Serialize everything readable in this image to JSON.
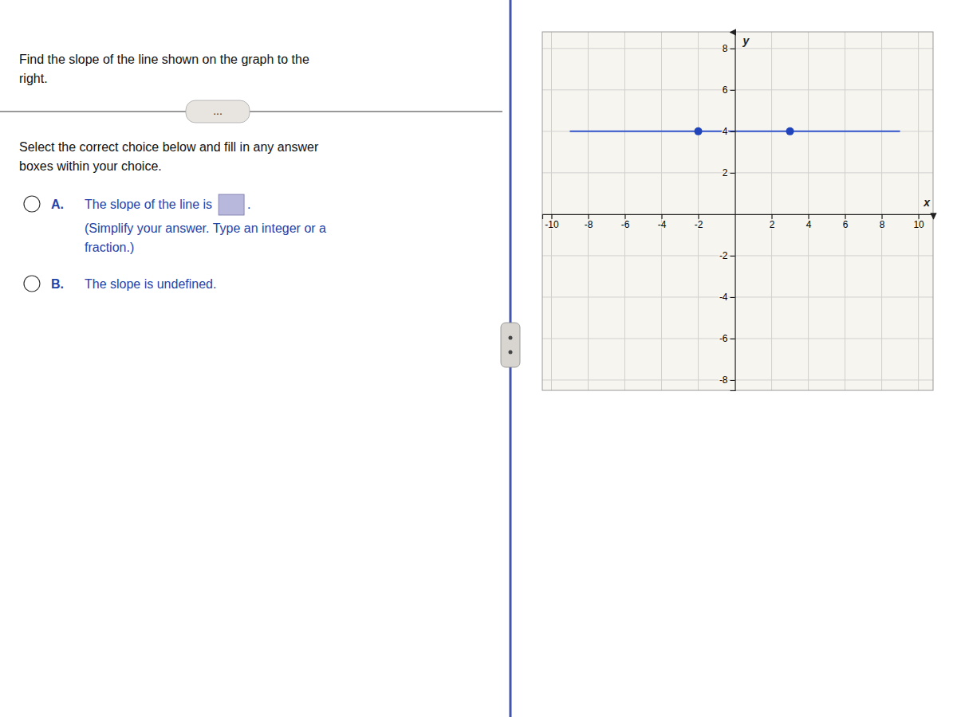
{
  "chart_data": {
    "type": "line",
    "annotations": [
      "Find the slope of the line shown on the graph to the",
      "right.",
      "...",
      "Select the correct choice below and fill in any answer",
      "boxes within your choice.",
      "A.",
      "The slope of the line is",
      ".",
      "(Simplify your answer. Type an integer or a",
      "fraction.)",
      "B.",
      "The slope is undefined."
    ],
    "x_label": "x",
    "y_label": "y",
    "xlim": [
      -10.5,
      10.8
    ],
    "ylim": [
      -8.5,
      8.8
    ],
    "xticks": [
      -10,
      -8,
      -6,
      -4,
      -2,
      2,
      4,
      6,
      8,
      10
    ],
    "yticks": [
      -8,
      -6,
      -4,
      -2,
      2,
      4,
      6,
      8
    ],
    "grid": true,
    "series": [
      {
        "type": "line",
        "color": "#3355cc",
        "x": [
          -9,
          9
        ],
        "values": [
          4,
          4
        ]
      },
      {
        "type": "scatter",
        "color": "#2244bb",
        "x": [
          -2,
          3
        ],
        "values": [
          4,
          4
        ]
      }
    ]
  }
}
